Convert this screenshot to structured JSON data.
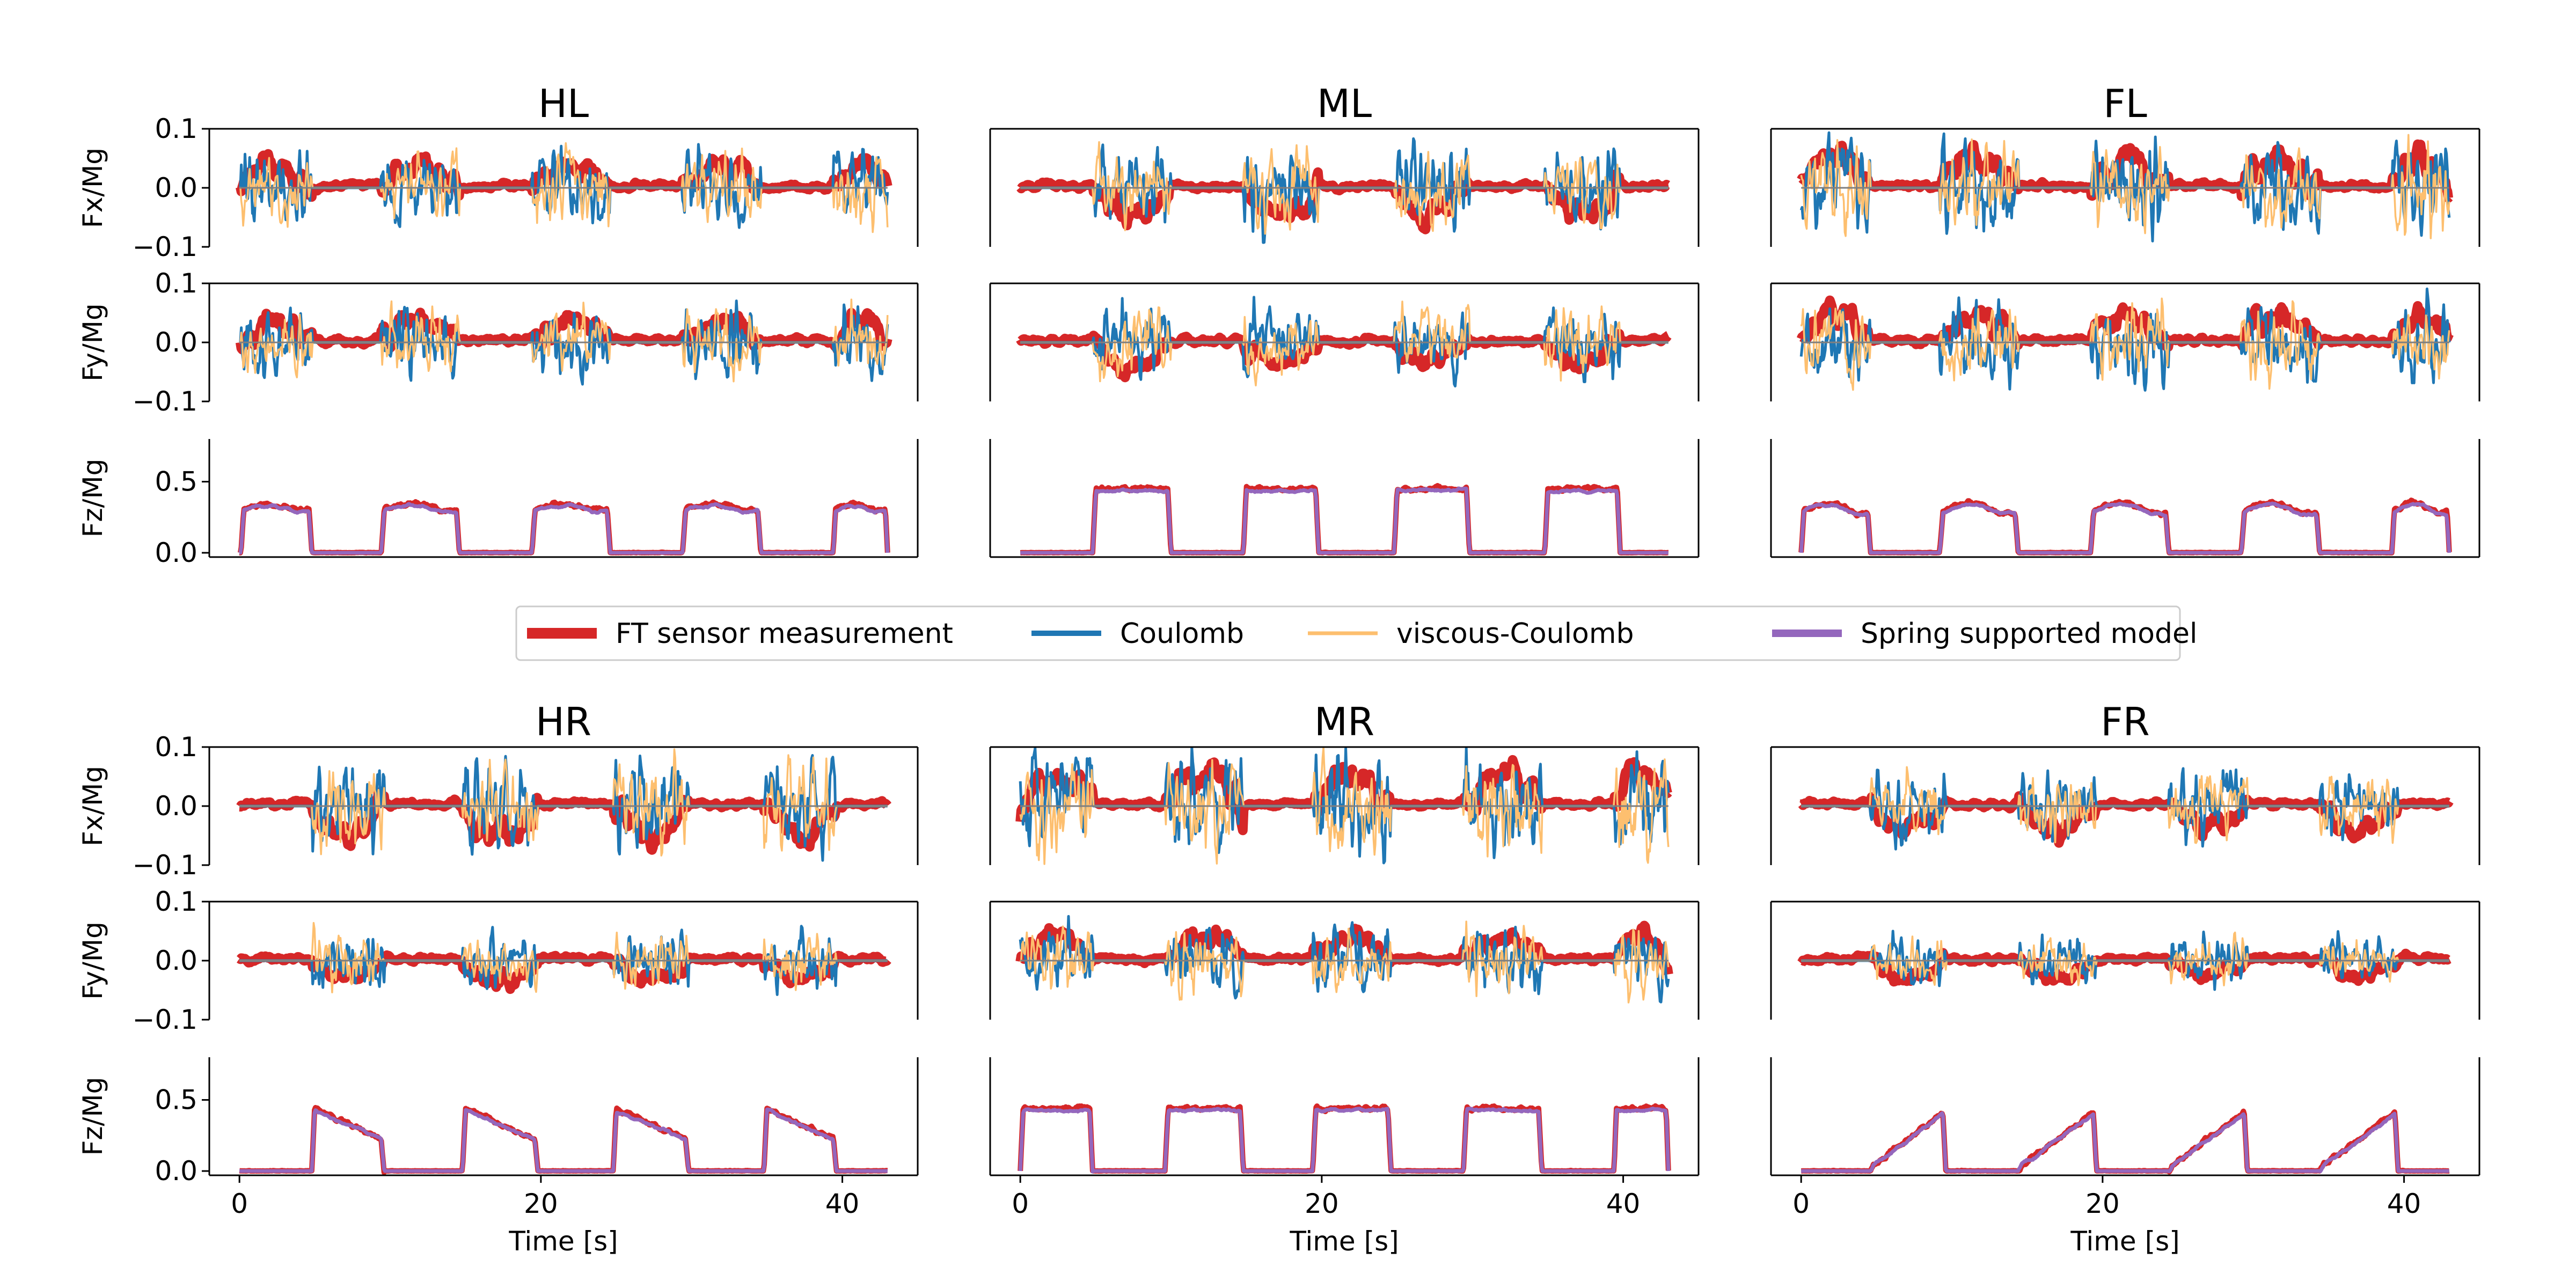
{
  "chart_data": {
    "type": "line",
    "title": "",
    "xlabel": "Time [s]",
    "xlim": [
      -2,
      45
    ],
    "xticks": [
      0,
      20,
      40
    ],
    "legend": {
      "placement": "center",
      "entries": [
        {
          "key": "ft",
          "label": "FT sensor measurement",
          "color": "#d62728"
        },
        {
          "key": "coulomb",
          "label": "Coulomb",
          "color": "#1f77b4"
        },
        {
          "key": "viscous",
          "label": "viscous-Coulomb",
          "color": "#fdbf6f"
        },
        {
          "key": "spring",
          "label": "Spring supported model",
          "color": "#9467bd"
        }
      ]
    },
    "rows": [
      {
        "key": "fx",
        "ylabel": "Fx/Mg",
        "ylim": [
          -0.1,
          0.1
        ],
        "yticks": [
          0.1,
          0.0,
          -0.1
        ],
        "ytick_labels": [
          "0.1",
          "0.0",
          "−0.1"
        ]
      },
      {
        "key": "fy",
        "ylabel": "Fy/Mg",
        "ylim": [
          -0.1,
          0.1
        ],
        "yticks": [
          0.1,
          0.0,
          -0.1
        ],
        "ytick_labels": [
          "0.1",
          "0.0",
          "−0.1"
        ]
      },
      {
        "key": "fz",
        "ylabel": "Fz/Mg",
        "ylim": [
          -0.03,
          0.8
        ],
        "yticks": [
          0.5,
          0.0
        ],
        "ytick_labels": [
          "0.5",
          "0.0"
        ]
      }
    ],
    "legs": [
      {
        "name": "HL",
        "fz_shape": "ramp",
        "stance": [
          [
            0.1,
            4.8
          ],
          [
            9.4,
            14.6
          ],
          [
            19.4,
            24.6
          ],
          [
            29.4,
            34.6
          ],
          [
            39.4,
            43.0
          ]
        ],
        "fz_peak": 0.34,
        "fz_tail": 0.3,
        "fx_amp": 0.06,
        "fy_amp": 0.06
      },
      {
        "name": "ML",
        "fz_shape": "flat",
        "stance": [
          [
            4.8,
            10.0
          ],
          [
            14.8,
            19.8
          ],
          [
            24.8,
            29.8
          ],
          [
            34.8,
            39.8
          ]
        ],
        "fz_peak": 0.45,
        "fz_tail": 0.45,
        "fx_amp": 0.07,
        "fy_amp": 0.06
      },
      {
        "name": "FL",
        "fz_shape": "ramp",
        "stance": [
          [
            0.0,
            4.6
          ],
          [
            9.2,
            14.4
          ],
          [
            19.2,
            24.4
          ],
          [
            29.2,
            34.4
          ],
          [
            39.2,
            43.0
          ]
        ],
        "fz_peak": 0.35,
        "fz_tail": 0.28,
        "fx_amp": 0.08,
        "fy_amp": 0.07
      },
      {
        "name": "HR",
        "fz_shape": "decay",
        "stance": [
          [
            4.8,
            9.6
          ],
          [
            14.8,
            19.8
          ],
          [
            24.8,
            29.8
          ],
          [
            34.8,
            39.6
          ]
        ],
        "fz_peak": 0.45,
        "fz_tail": 0.22,
        "fx_amp": 0.08,
        "fy_amp": 0.05
      },
      {
        "name": "MR",
        "fz_shape": "flat",
        "stance": [
          [
            0.0,
            4.8
          ],
          [
            9.6,
            14.8
          ],
          [
            19.4,
            24.6
          ],
          [
            29.4,
            34.6
          ],
          [
            39.4,
            43.0
          ]
        ],
        "fz_peak": 0.44,
        "fz_tail": 0.44,
        "fx_amp": 0.09,
        "fy_amp": 0.06
      },
      {
        "name": "FR",
        "fz_shape": "rise",
        "stance": [
          [
            4.6,
            9.6
          ],
          [
            14.4,
            19.6
          ],
          [
            24.4,
            29.6
          ],
          [
            34.4,
            39.6
          ]
        ],
        "fz_peak": 0.43,
        "fz_tail": 0.1,
        "fx_amp": 0.06,
        "fy_amp": 0.04
      }
    ]
  }
}
